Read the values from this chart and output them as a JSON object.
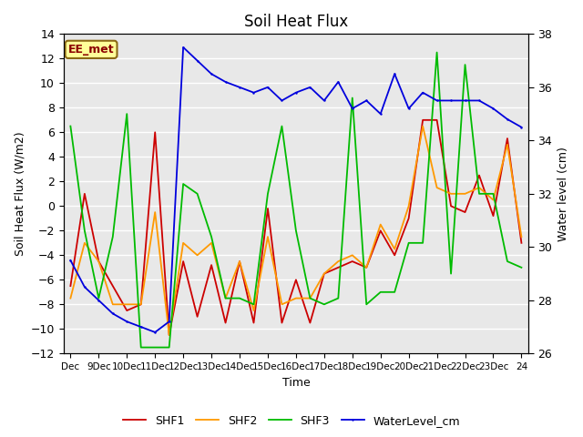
{
  "title": "Soil Heat Flux",
  "ylabel_left": "Soil Heat Flux (W/m2)",
  "ylabel_right": "Water level (cm)",
  "xlabel": "Time",
  "ylim_left": [
    -12,
    14
  ],
  "ylim_right": [
    26,
    38
  ],
  "bg_color": "#e8e8e8",
  "watermark_text": "EE_met",
  "x_tick_labels": [
    "Dec",
    "9Dec",
    "10Dec",
    "11Dec",
    "12Dec",
    "13Dec",
    "14Dec",
    "15Dec",
    "16Dec",
    "17Dec",
    "18Dec",
    "19Dec",
    "20Dec",
    "21Dec",
    "22Dec",
    "23Dec",
    "24"
  ],
  "shf1_x": [
    0,
    1,
    2,
    3,
    4,
    5,
    6,
    7,
    8,
    9,
    10,
    11,
    12,
    13,
    14,
    15,
    16,
    17,
    18,
    19,
    20,
    21,
    22,
    23,
    24,
    25,
    26,
    27,
    28,
    29,
    30,
    31,
    32
  ],
  "shf1_y": [
    -6.5,
    1.0,
    -4.5,
    -6.5,
    -8.5,
    -8.0,
    6.0,
    -10.5,
    -4.5,
    -9.0,
    -4.8,
    -9.5,
    -4.5,
    -9.5,
    -0.2,
    -9.5,
    -6.0,
    -9.5,
    -5.5,
    -5.0,
    -4.5,
    -5.0,
    -2.0,
    -4.0,
    -1.0,
    7.0,
    7.0,
    0.0,
    -0.5,
    2.5,
    -0.8,
    5.5,
    -3.0
  ],
  "shf2_x": [
    0,
    1,
    2,
    3,
    4,
    5,
    6,
    7,
    8,
    9,
    10,
    11,
    12,
    13,
    14,
    15,
    16,
    17,
    18,
    19,
    20,
    21,
    22,
    23,
    24,
    25,
    26,
    27,
    28,
    29,
    30,
    31,
    32
  ],
  "shf2_y": [
    -7.5,
    -3.0,
    -4.5,
    -8.0,
    -8.0,
    -8.0,
    -0.5,
    -10.5,
    -3.0,
    -4.0,
    -3.0,
    -7.5,
    -4.5,
    -8.5,
    -2.5,
    -8.0,
    -7.5,
    -7.5,
    -5.5,
    -4.5,
    -4.0,
    -5.0,
    -1.5,
    -3.5,
    0.0,
    6.5,
    1.5,
    1.0,
    1.0,
    1.5,
    0.5,
    5.0,
    -2.5
  ],
  "shf3_x": [
    0,
    1,
    2,
    3,
    4,
    5,
    6,
    7,
    8,
    9,
    10,
    11,
    12,
    13,
    14,
    15,
    16,
    17,
    18,
    19,
    20,
    21,
    22,
    23,
    24,
    25,
    26,
    27,
    28,
    29,
    30,
    31,
    32
  ],
  "shf3_y": [
    6.5,
    -2.0,
    -7.5,
    -2.5,
    7.5,
    -11.5,
    -11.5,
    -11.5,
    1.8,
    1.0,
    -2.5,
    -7.5,
    -7.5,
    -8.0,
    1.0,
    6.5,
    -2.0,
    -7.5,
    -8.0,
    -7.5,
    8.8,
    -8.0,
    -7.0,
    -7.0,
    -3.0,
    -3.0,
    12.5,
    -5.5,
    11.5,
    1.0,
    1.0,
    -4.5,
    -5.0
  ],
  "water_x": [
    0,
    1,
    2,
    3,
    4,
    5,
    6,
    7,
    8,
    9,
    10,
    11,
    12,
    13,
    14,
    15,
    16,
    17,
    18,
    19,
    20,
    21,
    22,
    23,
    24,
    25,
    26,
    27,
    28,
    29,
    30,
    31,
    32
  ],
  "water_y": [
    29.5,
    28.5,
    28.0,
    27.5,
    27.2,
    27.0,
    26.8,
    27.2,
    37.5,
    37.0,
    36.5,
    36.2,
    36.0,
    35.8,
    36.0,
    35.5,
    35.8,
    36.0,
    35.5,
    36.2,
    35.2,
    35.5,
    35.0,
    36.5,
    35.2,
    35.8,
    35.5,
    35.5,
    35.5,
    35.5,
    35.2,
    34.8,
    34.5
  ],
  "shf1_color": "#cc0000",
  "shf2_color": "#ff9900",
  "shf3_color": "#00bb00",
  "water_color": "#0000dd"
}
